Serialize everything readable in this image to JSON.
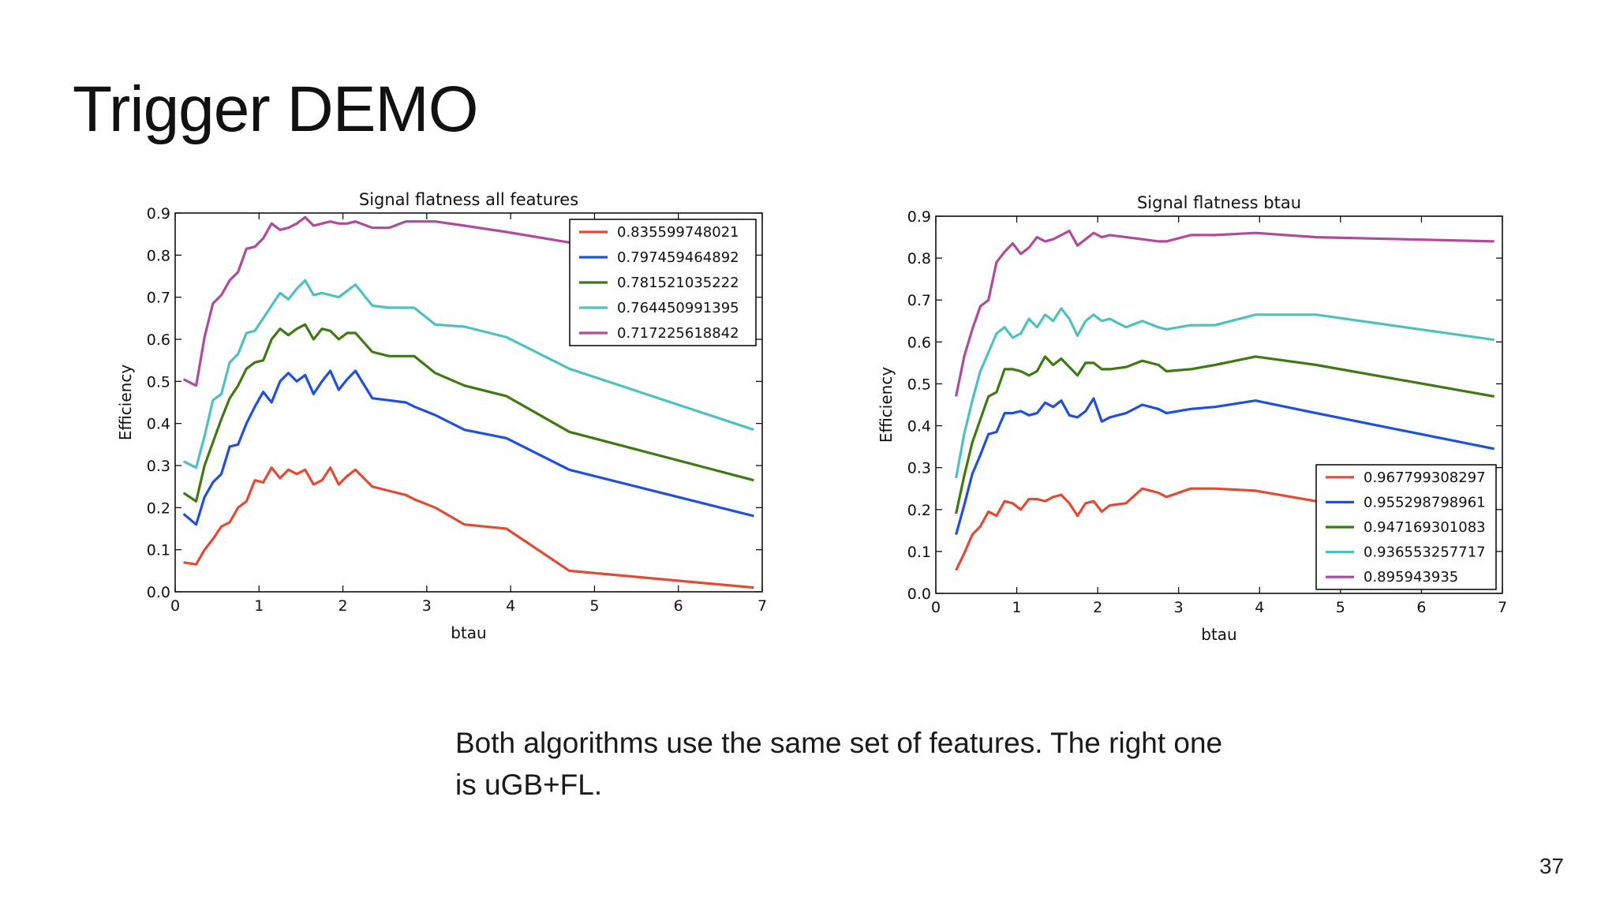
{
  "slide": {
    "title": "Trigger DEMO",
    "caption": "Both algorithms use the same set of features. The right one is uGB+FL.",
    "page_number": "37"
  },
  "chart_data": [
    {
      "type": "line",
      "title": "Signal flatness all features",
      "xlabel": "btau",
      "ylabel": "Efficiency",
      "xlim": [
        0,
        7
      ],
      "ylim": [
        0,
        0.9
      ],
      "xticks": [
        0,
        1,
        2,
        3,
        4,
        5,
        6,
        7
      ],
      "yticks": [
        0.0,
        0.1,
        0.2,
        0.3,
        0.4,
        0.5,
        0.6,
        0.7,
        0.8,
        0.9
      ],
      "grid": false,
      "legend": "top-right",
      "x": [
        0.1,
        0.25,
        0.35,
        0.45,
        0.55,
        0.65,
        0.75,
        0.85,
        0.95,
        1.05,
        1.15,
        1.25,
        1.35,
        1.45,
        1.55,
        1.65,
        1.75,
        1.85,
        1.95,
        2.05,
        2.15,
        2.35,
        2.55,
        2.75,
        2.85,
        3.1,
        3.45,
        3.95,
        4.7,
        6.9
      ],
      "series": [
        {
          "name": "0.835599748021",
          "color": "#e24a33",
          "values": [
            0.07,
            0.065,
            0.1,
            0.125,
            0.155,
            0.165,
            0.2,
            0.215,
            0.265,
            0.26,
            0.295,
            0.27,
            0.29,
            0.28,
            0.29,
            0.255,
            0.265,
            0.295,
            0.255,
            0.275,
            0.29,
            0.25,
            0.24,
            0.23,
            0.22,
            0.2,
            0.16,
            0.15,
            0.05,
            0.01
          ]
        },
        {
          "name": "0.797459464892",
          "color": "#1f4fe0",
          "values": [
            0.185,
            0.16,
            0.225,
            0.26,
            0.28,
            0.345,
            0.35,
            0.4,
            0.44,
            0.475,
            0.45,
            0.5,
            0.52,
            0.5,
            0.515,
            0.47,
            0.5,
            0.525,
            0.48,
            0.505,
            0.525,
            0.46,
            0.455,
            0.45,
            0.44,
            0.42,
            0.385,
            0.365,
            0.29,
            0.18
          ]
        },
        {
          "name": "0.781521035222",
          "color": "#3d7a12",
          "values": [
            0.235,
            0.215,
            0.3,
            0.355,
            0.41,
            0.46,
            0.49,
            0.53,
            0.545,
            0.55,
            0.6,
            0.625,
            0.61,
            0.625,
            0.635,
            0.6,
            0.625,
            0.62,
            0.6,
            0.615,
            0.615,
            0.57,
            0.56,
            0.56,
            0.56,
            0.52,
            0.49,
            0.465,
            0.38,
            0.265
          ]
        },
        {
          "name": "0.764450991395",
          "color": "#4fc0c0",
          "values": [
            0.31,
            0.295,
            0.37,
            0.455,
            0.47,
            0.545,
            0.565,
            0.615,
            0.62,
            0.65,
            0.68,
            0.71,
            0.695,
            0.72,
            0.74,
            0.705,
            0.71,
            0.705,
            0.7,
            0.715,
            0.73,
            0.68,
            0.675,
            0.675,
            0.675,
            0.635,
            0.63,
            0.605,
            0.53,
            0.385
          ]
        },
        {
          "name": "0.717225618842",
          "color": "#b04a9a",
          "values": [
            0.505,
            0.49,
            0.605,
            0.685,
            0.705,
            0.74,
            0.76,
            0.815,
            0.82,
            0.84,
            0.875,
            0.86,
            0.865,
            0.875,
            0.89,
            0.87,
            0.875,
            0.88,
            0.875,
            0.875,
            0.88,
            0.865,
            0.865,
            0.88,
            0.88,
            0.88,
            0.87,
            0.855,
            0.83,
            0.8
          ]
        }
      ]
    },
    {
      "type": "line",
      "title": "Signal flatness btau",
      "xlabel": "btau",
      "ylabel": "Efficiency",
      "xlim": [
        0,
        7
      ],
      "ylim": [
        0,
        0.9
      ],
      "xticks": [
        0,
        1,
        2,
        3,
        4,
        5,
        6,
        7
      ],
      "yticks": [
        0.0,
        0.1,
        0.2,
        0.3,
        0.4,
        0.5,
        0.6,
        0.7,
        0.8,
        0.9
      ],
      "grid": false,
      "legend": "bottom-right",
      "x": [
        0.25,
        0.35,
        0.45,
        0.55,
        0.65,
        0.75,
        0.85,
        0.95,
        1.05,
        1.15,
        1.25,
        1.35,
        1.45,
        1.55,
        1.65,
        1.75,
        1.85,
        1.95,
        2.05,
        2.15,
        2.35,
        2.55,
        2.75,
        2.85,
        3.15,
        3.45,
        3.95,
        4.7,
        6.9
      ],
      "series": [
        {
          "name": "0.967799308297",
          "color": "#e24a33",
          "values": [
            0.055,
            0.095,
            0.14,
            0.16,
            0.195,
            0.185,
            0.22,
            0.215,
            0.2,
            0.225,
            0.225,
            0.22,
            0.23,
            0.235,
            0.215,
            0.185,
            0.215,
            0.22,
            0.195,
            0.21,
            0.215,
            0.25,
            0.24,
            0.23,
            0.25,
            0.25,
            0.245,
            0.22,
            0.2
          ]
        },
        {
          "name": "0.955298798961",
          "color": "#1f4fe0",
          "values": [
            0.14,
            0.21,
            0.285,
            0.33,
            0.38,
            0.385,
            0.43,
            0.43,
            0.435,
            0.425,
            0.43,
            0.455,
            0.445,
            0.46,
            0.425,
            0.42,
            0.435,
            0.465,
            0.41,
            0.42,
            0.43,
            0.45,
            0.44,
            0.43,
            0.44,
            0.445,
            0.46,
            0.43,
            0.345
          ]
        },
        {
          "name": "0.947169301083",
          "color": "#3d7a12",
          "values": [
            0.19,
            0.28,
            0.36,
            0.415,
            0.47,
            0.48,
            0.535,
            0.535,
            0.53,
            0.52,
            0.53,
            0.565,
            0.545,
            0.56,
            0.54,
            0.52,
            0.55,
            0.55,
            0.535,
            0.535,
            0.54,
            0.555,
            0.545,
            0.53,
            0.535,
            0.545,
            0.565,
            0.545,
            0.47
          ]
        },
        {
          "name": "0.936553257717",
          "color": "#4fc0c0",
          "values": [
            0.275,
            0.38,
            0.46,
            0.53,
            0.575,
            0.62,
            0.635,
            0.61,
            0.62,
            0.655,
            0.635,
            0.665,
            0.65,
            0.68,
            0.655,
            0.615,
            0.65,
            0.665,
            0.65,
            0.655,
            0.635,
            0.65,
            0.635,
            0.63,
            0.64,
            0.64,
            0.665,
            0.665,
            0.605
          ]
        },
        {
          "name": "0.895943935",
          "color": "#b04a9a",
          "values": [
            0.47,
            0.565,
            0.63,
            0.685,
            0.7,
            0.79,
            0.815,
            0.835,
            0.81,
            0.825,
            0.85,
            0.84,
            0.845,
            0.855,
            0.865,
            0.83,
            0.845,
            0.86,
            0.85,
            0.855,
            0.85,
            0.845,
            0.84,
            0.84,
            0.855,
            0.855,
            0.86,
            0.85,
            0.84
          ]
        }
      ]
    }
  ]
}
